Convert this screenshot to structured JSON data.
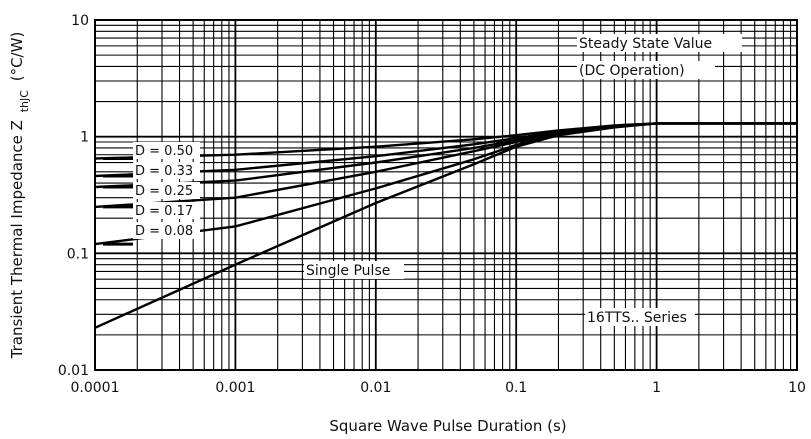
{
  "chart_data": {
    "type": "line",
    "x_scale": "log",
    "y_scale": "log",
    "xlim": [
      0.0001,
      10
    ],
    "ylim": [
      0.01,
      10
    ],
    "x_ticks": [
      "0.0001",
      "0.001",
      "0.01",
      "0.1",
      "1",
      "10"
    ],
    "y_ticks": [
      "0.01",
      "0.1",
      "1",
      "10"
    ],
    "xlabel": "Square Wave Pulse Duration (s)",
    "ylabel": "Transient Thermal Impedance Z",
    "ylabel_sub": "thJC",
    "ylabel_unit": "(°C/W)",
    "grid": true,
    "annotations": {
      "steady_state_1": "Steady State Value",
      "steady_state_2": "(DC Operation)",
      "single_pulse": "Single Pulse",
      "series": "16TTS.. Series"
    },
    "series": [
      {
        "name": "D = 0.50",
        "x": [
          0.0001,
          0.001,
          0.01,
          0.05,
          0.1,
          0.2,
          0.5,
          1,
          10
        ],
        "y": [
          0.65,
          0.7,
          0.82,
          0.95,
          1.03,
          1.13,
          1.25,
          1.3,
          1.3
        ]
      },
      {
        "name": "D = 0.33",
        "x": [
          0.0001,
          0.001,
          0.01,
          0.05,
          0.1,
          0.2,
          0.5,
          1,
          10
        ],
        "y": [
          0.46,
          0.52,
          0.68,
          0.86,
          0.97,
          1.1,
          1.24,
          1.3,
          1.3
        ]
      },
      {
        "name": "D = 0.25",
        "x": [
          0.0001,
          0.001,
          0.01,
          0.05,
          0.1,
          0.2,
          0.5,
          1,
          10
        ],
        "y": [
          0.37,
          0.42,
          0.6,
          0.8,
          0.93,
          1.08,
          1.23,
          1.3,
          1.3
        ]
      },
      {
        "name": "D = 0.17",
        "x": [
          0.0001,
          0.001,
          0.01,
          0.05,
          0.1,
          0.2,
          0.5,
          1,
          10
        ],
        "y": [
          0.25,
          0.3,
          0.5,
          0.75,
          0.9,
          1.06,
          1.22,
          1.3,
          1.3
        ]
      },
      {
        "name": "D = 0.08",
        "x": [
          0.0001,
          0.001,
          0.01,
          0.05,
          0.1,
          0.2,
          0.5,
          1,
          10
        ],
        "y": [
          0.12,
          0.17,
          0.36,
          0.64,
          0.85,
          1.04,
          1.21,
          1.3,
          1.3
        ]
      },
      {
        "name": "Single Pulse",
        "x": [
          0.0001,
          0.001,
          0.01,
          0.05,
          0.1,
          0.2,
          0.5,
          1,
          10
        ],
        "y": [
          0.023,
          0.08,
          0.27,
          0.58,
          0.82,
          1.03,
          1.2,
          1.3,
          1.3
        ]
      }
    ]
  }
}
